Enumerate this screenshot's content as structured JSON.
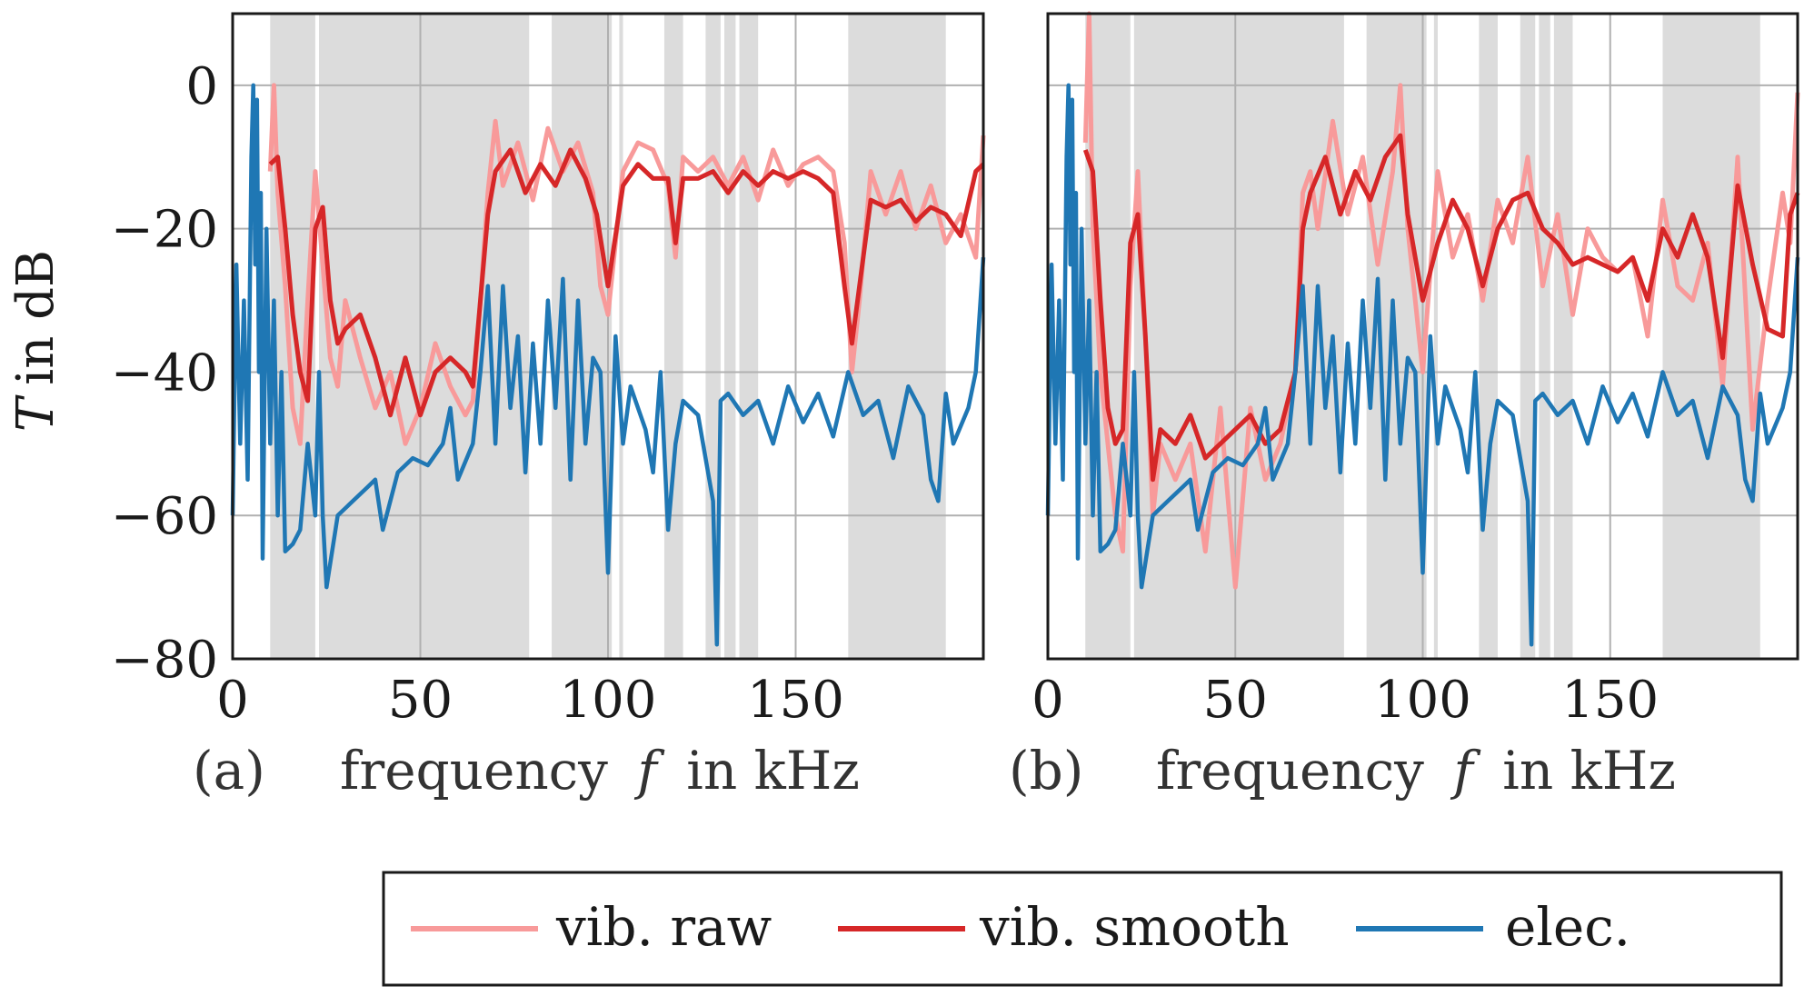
{
  "chart_data": {
    "type": "line",
    "ylabel": "T in dB",
    "ylim": [
      -80,
      10
    ],
    "xlim": [
      0,
      200
    ],
    "grid": true,
    "yticks": [
      0,
      -20,
      -40,
      -60,
      -80
    ],
    "ytick_labels": [
      "0",
      "−20",
      "−40",
      "−60",
      "−80"
    ],
    "xticks": [
      0,
      50,
      100,
      150
    ],
    "xtick_labels": [
      "0",
      "50",
      "100",
      "150"
    ],
    "legend": {
      "placement": "bottom-center",
      "entries": [
        {
          "label": "vib. raw",
          "color": "#f89a9a"
        },
        {
          "label": "vib. smooth",
          "color": "#d62728"
        },
        {
          "label": "elec.",
          "color": "#1f77b4"
        }
      ]
    },
    "panels": [
      {
        "id": "a",
        "caption": "(a)",
        "xlabel_text": "frequency",
        "xlabel_var": "f",
        "xlabel_unit": "in kHz",
        "shaded_bands": [
          [
            10,
            22
          ],
          [
            23,
            79
          ],
          [
            85,
            101
          ],
          [
            103,
            104
          ],
          [
            115,
            120
          ],
          [
            126,
            130
          ],
          [
            131,
            134
          ],
          [
            135,
            140
          ],
          [
            164,
            190
          ]
        ],
        "series": [
          {
            "name": "vib. raw",
            "color": "#f89a9a",
            "x": [
              10,
              11,
              12,
              14,
              16,
              18,
              20,
              22,
              24,
              26,
              28,
              30,
              34,
              38,
              42,
              46,
              50,
              54,
              58,
              62,
              64,
              66,
              68,
              70,
              72,
              76,
              80,
              84,
              88,
              92,
              96,
              98,
              100,
              104,
              108,
              112,
              116,
              118,
              120,
              124,
              128,
              132,
              136,
              140,
              144,
              148,
              152,
              156,
              160,
              163,
              165,
              167,
              170,
              174,
              178,
              182,
              186,
              190,
              194,
              198,
              200
            ],
            "y": [
              -12,
              0,
              -15,
              -28,
              -45,
              -50,
              -30,
              -12,
              -25,
              -38,
              -42,
              -30,
              -38,
              -45,
              -40,
              -50,
              -45,
              -36,
              -42,
              -46,
              -44,
              -30,
              -15,
              -5,
              -14,
              -8,
              -16,
              -6,
              -12,
              -8,
              -15,
              -28,
              -32,
              -12,
              -8,
              -9,
              -14,
              -24,
              -10,
              -12,
              -10,
              -14,
              -10,
              -16,
              -9,
              -14,
              -11,
              -10,
              -12,
              -22,
              -40,
              -30,
              -12,
              -18,
              -12,
              -20,
              -14,
              -22,
              -18,
              -24,
              -7
            ]
          },
          {
            "name": "vib. smooth",
            "color": "#d62728",
            "x": [
              10,
              12,
              14,
              16,
              18,
              20,
              22,
              24,
              26,
              28,
              30,
              34,
              38,
              42,
              46,
              50,
              54,
              58,
              62,
              64,
              66,
              68,
              70,
              74,
              78,
              82,
              86,
              90,
              94,
              97,
              100,
              104,
              108,
              112,
              116,
              118,
              120,
              124,
              128,
              132,
              136,
              140,
              144,
              148,
              152,
              156,
              160,
              163,
              165,
              167,
              170,
              174,
              178,
              182,
              186,
              190,
              194,
              198,
              200
            ],
            "y": [
              -11,
              -10,
              -20,
              -32,
              -40,
              -44,
              -20,
              -17,
              -30,
              -36,
              -34,
              -32,
              -38,
              -46,
              -38,
              -46,
              -40,
              -38,
              -40,
              -42,
              -30,
              -18,
              -12,
              -9,
              -15,
              -11,
              -14,
              -9,
              -13,
              -18,
              -28,
              -14,
              -11,
              -13,
              -13,
              -22,
              -13,
              -13,
              -12,
              -15,
              -12,
              -14,
              -12,
              -13,
              -12,
              -13,
              -15,
              -28,
              -36,
              -28,
              -16,
              -17,
              -16,
              -19,
              -17,
              -18,
              -21,
              -12,
              -11
            ]
          },
          {
            "name": "elec.",
            "color": "#1f77b4",
            "x": [
              0,
              1,
              2,
              3,
              4,
              5,
              5.5,
              6,
              6.5,
              7,
              7.5,
              8,
              9,
              10,
              11,
              12,
              13,
              14,
              16,
              18,
              20,
              22,
              23,
              24,
              25,
              28,
              32,
              36,
              38,
              40,
              44,
              48,
              52,
              56,
              58,
              60,
              64,
              66,
              68,
              70,
              72,
              74,
              76,
              78,
              80,
              82,
              84,
              86,
              88,
              90,
              92,
              94,
              96,
              98,
              100,
              102,
              104,
              106,
              108,
              110,
              112,
              114,
              116,
              118,
              120,
              124,
              128,
              129,
              130,
              132,
              136,
              140,
              144,
              148,
              152,
              156,
              160,
              164,
              168,
              172,
              176,
              180,
              184,
              186,
              188,
              190,
              192,
              196,
              198,
              200
            ],
            "y": [
              -60,
              -25,
              -50,
              -30,
              -55,
              -10,
              0,
              -25,
              -2,
              -40,
              -15,
              -66,
              -20,
              -50,
              -30,
              -60,
              -40,
              -65,
              -64,
              -62,
              -50,
              -60,
              -40,
              -60,
              -70,
              -60,
              -58,
              -56,
              -55,
              -62,
              -54,
              -52,
              -53,
              -50,
              -45,
              -55,
              -50,
              -40,
              -28,
              -50,
              -28,
              -45,
              -35,
              -54,
              -36,
              -50,
              -30,
              -45,
              -27,
              -55,
              -30,
              -50,
              -38,
              -40,
              -68,
              -35,
              -50,
              -42,
              -45,
              -48,
              -54,
              -40,
              -62,
              -50,
              -44,
              -46,
              -58,
              -78,
              -44,
              -43,
              -46,
              -44,
              -50,
              -42,
              -47,
              -43,
              -49,
              -40,
              -46,
              -44,
              -52,
              -42,
              -46,
              -55,
              -58,
              -43,
              -50,
              -45,
              -40,
              -24
            ]
          }
        ]
      },
      {
        "id": "b",
        "caption": "(b)",
        "xlabel_text": "frequency",
        "xlabel_var": "f",
        "xlabel_unit": "in kHz",
        "shaded_bands": [
          [
            10,
            22
          ],
          [
            23,
            79
          ],
          [
            85,
            101
          ],
          [
            103,
            104
          ],
          [
            115,
            120
          ],
          [
            126,
            130
          ],
          [
            131,
            134
          ],
          [
            135,
            140
          ],
          [
            164,
            190
          ]
        ],
        "series": [
          {
            "name": "vib. raw",
            "color": "#f89a9a",
            "x": [
              10,
              11,
              12,
              14,
              16,
              18,
              20,
              22,
              24,
              26,
              28,
              30,
              34,
              38,
              42,
              46,
              50,
              54,
              58,
              62,
              66,
              68,
              70,
              72,
              76,
              80,
              84,
              88,
              92,
              94,
              96,
              100,
              104,
              108,
              112,
              116,
              120,
              124,
              128,
              132,
              136,
              140,
              144,
              148,
              152,
              156,
              160,
              164,
              168,
              172,
              176,
              180,
              184,
              188,
              192,
              196,
              198,
              200
            ],
            "y": [
              -8,
              10,
              -20,
              -40,
              -50,
              -60,
              -65,
              -28,
              -12,
              -35,
              -60,
              -50,
              -55,
              -50,
              -65,
              -45,
              -70,
              -45,
              -55,
              -50,
              -40,
              -15,
              -12,
              -20,
              -5,
              -18,
              -10,
              -25,
              -12,
              0,
              -20,
              -40,
              -12,
              -24,
              -18,
              -30,
              -16,
              -22,
              -10,
              -28,
              -18,
              -32,
              -20,
              -24,
              -26,
              -24,
              -35,
              -16,
              -28,
              -30,
              -22,
              -42,
              -10,
              -48,
              -30,
              -15,
              -22,
              -1
            ]
          },
          {
            "name": "vib. smooth",
            "color": "#d62728",
            "x": [
              10,
              12,
              14,
              16,
              18,
              20,
              22,
              24,
              26,
              28,
              30,
              34,
              38,
              42,
              46,
              50,
              54,
              58,
              62,
              66,
              68,
              70,
              74,
              78,
              82,
              86,
              90,
              94,
              96,
              100,
              104,
              108,
              112,
              116,
              120,
              124,
              128,
              132,
              136,
              140,
              144,
              148,
              152,
              156,
              160,
              164,
              168,
              172,
              176,
              180,
              184,
              188,
              192,
              196,
              198,
              200
            ],
            "y": [
              -9,
              -12,
              -30,
              -45,
              -50,
              -48,
              -22,
              -18,
              -35,
              -55,
              -48,
              -50,
              -46,
              -52,
              -50,
              -48,
              -46,
              -50,
              -48,
              -40,
              -20,
              -15,
              -10,
              -18,
              -12,
              -16,
              -10,
              -7,
              -18,
              -30,
              -22,
              -16,
              -20,
              -28,
              -20,
              -16,
              -15,
              -20,
              -22,
              -25,
              -24,
              -25,
              -26,
              -24,
              -30,
              -20,
              -24,
              -18,
              -24,
              -38,
              -14,
              -25,
              -34,
              -35,
              -18,
              -15
            ]
          },
          {
            "name": "elec.",
            "color": "#1f77b4",
            "x": [
              0,
              1,
              2,
              3,
              4,
              5,
              5.5,
              6,
              6.5,
              7,
              7.5,
              8,
              9,
              10,
              11,
              12,
              13,
              14,
              16,
              18,
              20,
              22,
              23,
              24,
              25,
              28,
              32,
              36,
              38,
              40,
              44,
              48,
              52,
              56,
              58,
              60,
              64,
              66,
              68,
              70,
              72,
              74,
              76,
              78,
              80,
              82,
              84,
              86,
              88,
              90,
              92,
              94,
              96,
              98,
              100,
              102,
              104,
              106,
              108,
              110,
              112,
              114,
              116,
              118,
              120,
              124,
              128,
              129,
              130,
              132,
              136,
              140,
              144,
              148,
              152,
              156,
              160,
              164,
              168,
              172,
              176,
              180,
              184,
              186,
              188,
              190,
              192,
              196,
              198,
              200
            ],
            "y": [
              -60,
              -25,
              -50,
              -30,
              -55,
              -10,
              0,
              -25,
              -2,
              -40,
              -15,
              -66,
              -20,
              -50,
              -30,
              -60,
              -40,
              -65,
              -64,
              -62,
              -50,
              -60,
              -40,
              -60,
              -70,
              -60,
              -58,
              -56,
              -55,
              -62,
              -54,
              -52,
              -53,
              -50,
              -45,
              -55,
              -50,
              -40,
              -28,
              -50,
              -28,
              -45,
              -35,
              -54,
              -36,
              -50,
              -30,
              -45,
              -27,
              -55,
              -30,
              -50,
              -38,
              -40,
              -68,
              -35,
              -50,
              -42,
              -45,
              -48,
              -54,
              -40,
              -62,
              -50,
              -44,
              -46,
              -58,
              -78,
              -44,
              -43,
              -46,
              -44,
              -50,
              -42,
              -47,
              -43,
              -49,
              -40,
              -46,
              -44,
              -52,
              -42,
              -46,
              -55,
              -58,
              -43,
              -50,
              -45,
              -40,
              -24
            ]
          }
        ]
      }
    ]
  }
}
